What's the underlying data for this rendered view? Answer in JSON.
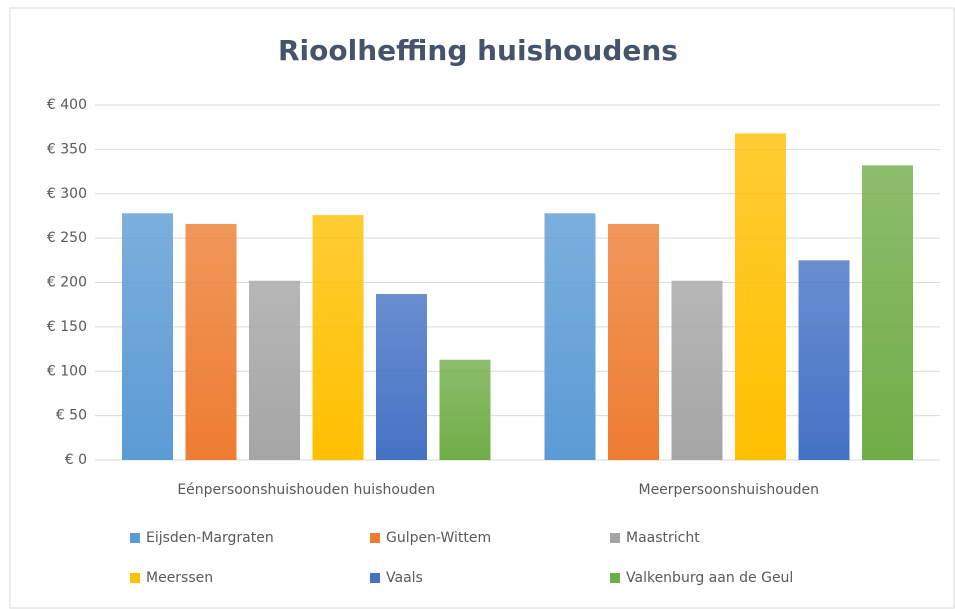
{
  "chart_data": {
    "type": "bar",
    "title": "Rioolheffing huishoudens",
    "categories": [
      "Eénpersoonshuishouden huishouden",
      "Meerpersoonshuishouden"
    ],
    "series": [
      {
        "name": "Eijsden-Margraten",
        "color": "#5b9bd5",
        "values": [
          278,
          278
        ]
      },
      {
        "name": "Gulpen-Wittem",
        "color": "#ed7d31",
        "values": [
          266,
          266
        ]
      },
      {
        "name": "Maastricht",
        "color": "#a5a5a5",
        "values": [
          202,
          202
        ]
      },
      {
        "name": "Meerssen",
        "color": "#ffc000",
        "values": [
          276,
          368
        ]
      },
      {
        "name": "Vaals",
        "color": "#4472c4",
        "values": [
          187,
          225
        ]
      },
      {
        "name": "Valkenburg aan de Geul",
        "color": "#70ad47",
        "values": [
          113,
          332
        ]
      }
    ],
    "ylim": [
      0,
      400
    ],
    "yticks": [
      {
        "value": 0,
        "label": "€ 0"
      },
      {
        "value": 50,
        "label": "€ 50"
      },
      {
        "value": 100,
        "label": "€ 100"
      },
      {
        "value": 150,
        "label": "€ 150"
      },
      {
        "value": 200,
        "label": "€ 200"
      },
      {
        "value": 250,
        "label": "€ 250"
      },
      {
        "value": 300,
        "label": "€ 300"
      },
      {
        "value": 350,
        "label": "€ 350"
      },
      {
        "value": 400,
        "label": "€ 400"
      }
    ],
    "grid": true,
    "legend": "bottom"
  }
}
